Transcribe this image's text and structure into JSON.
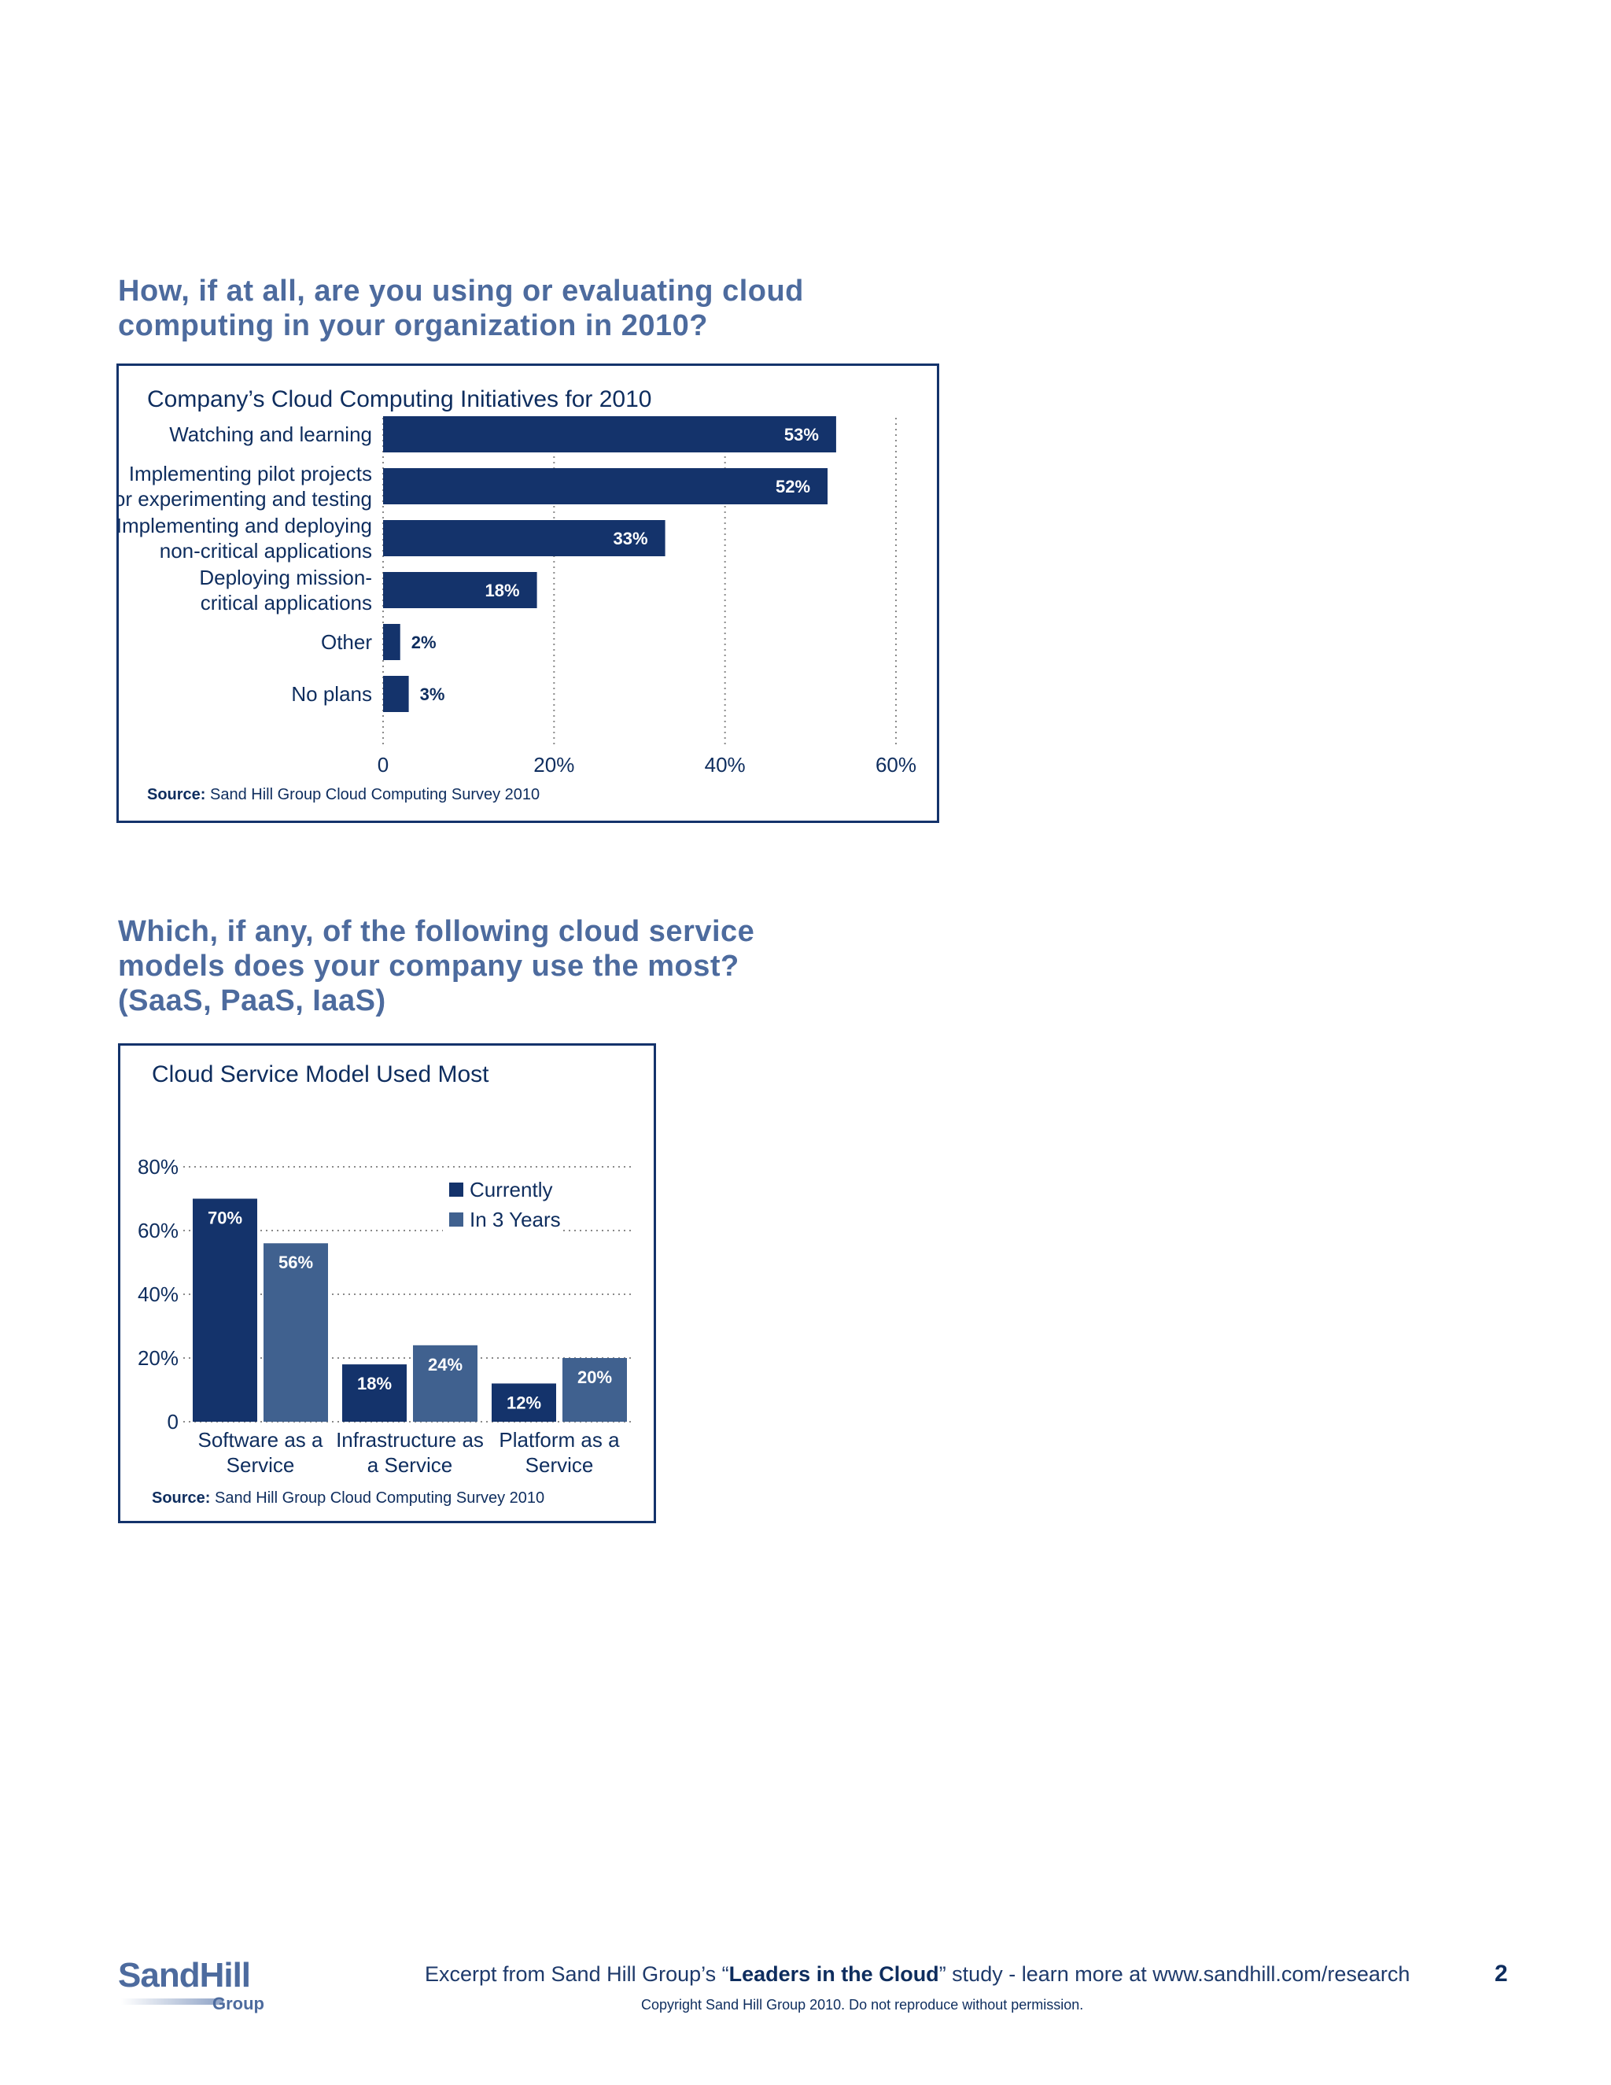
{
  "questions": {
    "q1": [
      "How, if at all, are you using or evaluating cloud",
      "computing in your organization in 2010?"
    ],
    "q2": [
      "Which, if any, of the following cloud service",
      "models does your company use the most?",
      "(SaaS, PaaS, IaaS)"
    ]
  },
  "chart_data": [
    {
      "type": "bar",
      "orientation": "horizontal",
      "title": "Company’s Cloud Computing Initiatives for 2010",
      "categories": [
        [
          "Watching and learning"
        ],
        [
          "Implementing pilot projects",
          "for experimenting and testing"
        ],
        [
          "Implementing and deploying",
          "non-critical applications"
        ],
        [
          "Deploying mission-",
          "critical applications"
        ],
        [
          "Other"
        ],
        [
          "No plans"
        ]
      ],
      "values": [
        53,
        52,
        33,
        18,
        2,
        3
      ],
      "data_labels": [
        "53%",
        "52%",
        "33%",
        "18%",
        "2%",
        "3%"
      ],
      "xlim": [
        0,
        60
      ],
      "xticks": [
        0,
        20,
        40,
        60
      ],
      "xtick_labels": [
        "0",
        "20%",
        "40%",
        "60%"
      ],
      "grid": "vertical dotted",
      "bar_color": "#14336b",
      "source_bold": "Source:",
      "source_text": " Sand Hill Group Cloud Computing Survey 2010"
    },
    {
      "type": "bar",
      "orientation": "vertical",
      "title": "Cloud Service Model Used Most",
      "categories": [
        [
          "Software as a",
          "Service"
        ],
        [
          "Infrastructure as",
          "a Service"
        ],
        [
          "Platform as a",
          "Service"
        ]
      ],
      "series": [
        {
          "name": "Currently",
          "values": [
            70,
            18,
            12
          ],
          "labels": [
            "70%",
            "18%",
            "12%"
          ],
          "color": "#14336b"
        },
        {
          "name": "In 3 Years",
          "values": [
            56,
            24,
            20
          ],
          "labels": [
            "56%",
            "24%",
            "20%"
          ],
          "color": "#40618f"
        }
      ],
      "ylim": [
        0,
        80
      ],
      "yticks": [
        0,
        20,
        40,
        60,
        80
      ],
      "ytick_labels": [
        "0",
        "20%",
        "40%",
        "60%",
        "80%"
      ],
      "grid": "horizontal dotted",
      "legend_position": "top-right",
      "source_bold": "Source:",
      "source_text": " Sand Hill Group Cloud Computing Survey 2010"
    }
  ],
  "footer": {
    "logo_word": "SandHill",
    "logo_sub": "Group",
    "excerpt_pre": "Excerpt from Sand Hill Group’s “",
    "excerpt_bold": "Leaders in the Cloud",
    "excerpt_post": "” study - learn more at www.sandhill.com/research",
    "copyright": "Copyright Sand Hill Group 2010. Do not reproduce without permission.",
    "page_number": "2"
  }
}
